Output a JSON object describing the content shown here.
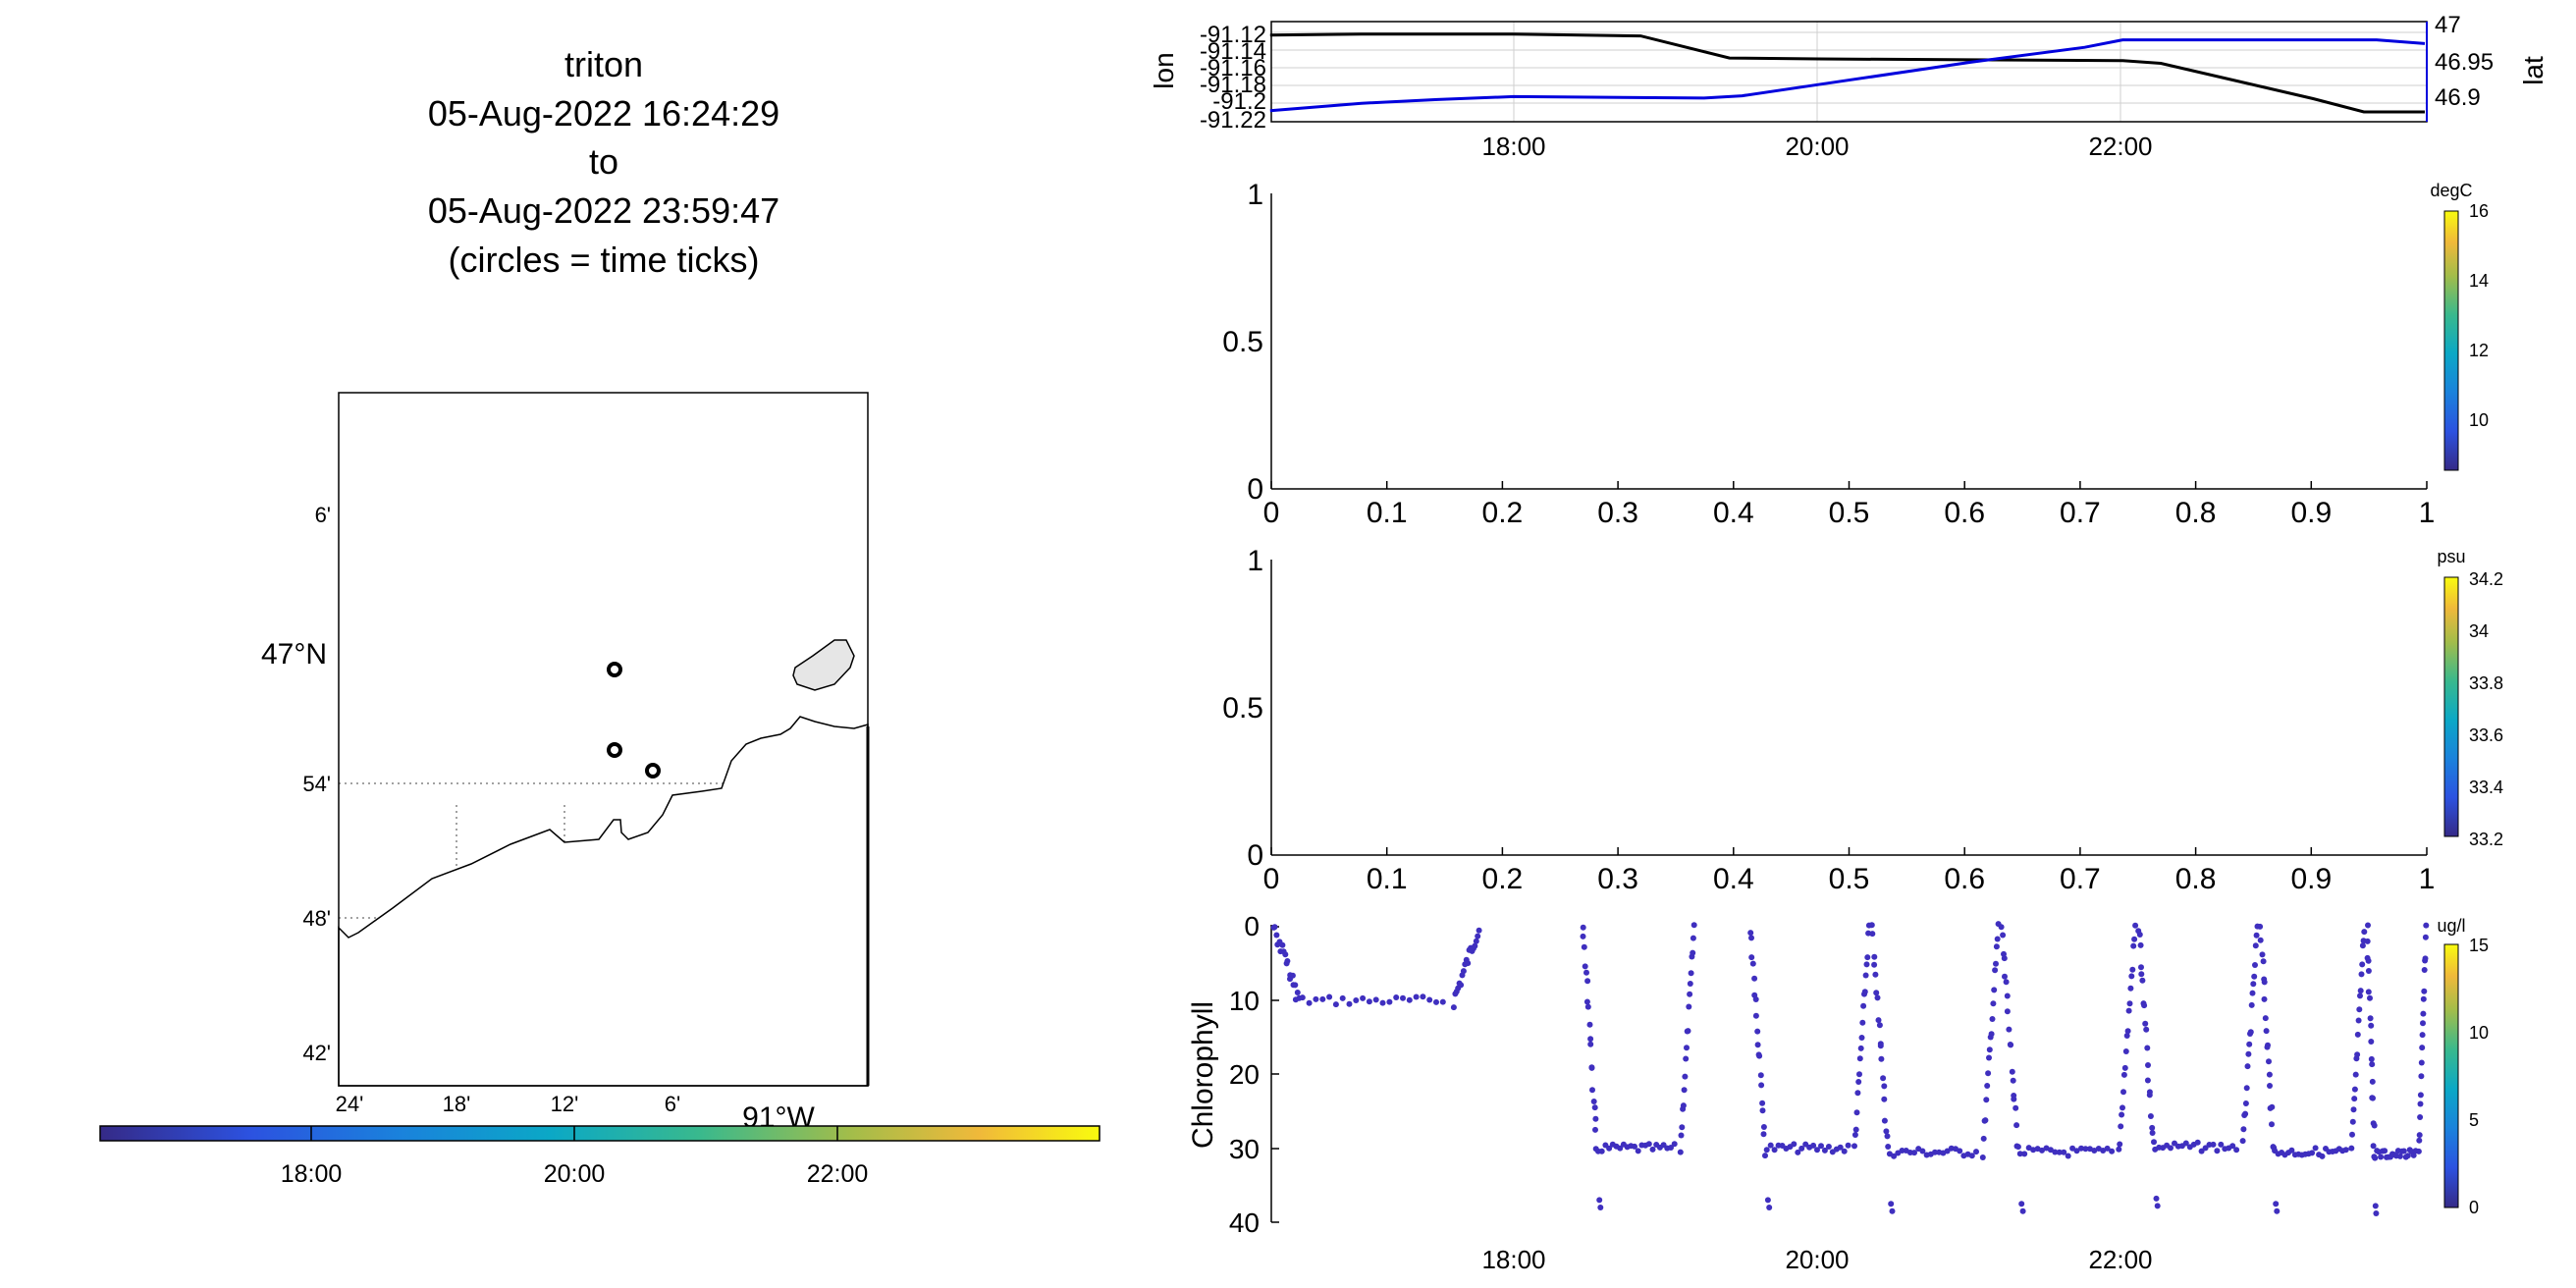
{
  "title_lines": [
    "triton",
    "05-Aug-2022 16:24:29",
    "to",
    "05-Aug-2022 23:59:47",
    "(circles = time ticks)"
  ],
  "colors": {
    "lon_line": "#000000",
    "lat_line": "#0000dd",
    "scatter": "#3f2fbf",
    "land": "#e6e6e6",
    "axis": "#000000"
  },
  "map": {
    "lat_tick_labels": [
      "6'",
      "47°N",
      "54'",
      "48'",
      "42'"
    ],
    "lon_tick_labels": [
      "24'",
      "18'",
      "12'",
      "6'",
      "91°W"
    ],
    "grid": "dotted"
  },
  "time_colorbar": {
    "tick_labels": [
      "18:00",
      "20:00",
      "22:00"
    ],
    "colormap": "parula"
  },
  "chart_data": [
    {
      "type": "line",
      "name": "track-lon-lat",
      "ylabel": "lon",
      "ylabel_right": "lat",
      "left_tick_labels": [
        "-91.12",
        "-91.14",
        "-91.16",
        "-91.18",
        "-91.2",
        "-91.22"
      ],
      "right_tick_labels": [
        "47",
        "46.95",
        "46.9"
      ],
      "x_tick_labels": [
        "18:00",
        "20:00",
        "22:00"
      ],
      "grid": true,
      "series": [
        {
          "axis": "left",
          "x": [
            "16:24",
            "17:00",
            "18:00",
            "18:50",
            "19:25",
            "20:00",
            "21:00",
            "22:00",
            "22:15",
            "22:45",
            "23:15",
            "23:35",
            "23:59"
          ],
          "y": [
            -91.123,
            -91.122,
            -91.122,
            -91.124,
            -91.149,
            -91.15,
            -91.151,
            -91.152,
            -91.155,
            -91.175,
            -91.195,
            -91.21,
            -91.21
          ]
        },
        {
          "axis": "right",
          "x": [
            "16:24",
            "17:00",
            "17:30",
            "18:00",
            "19:15",
            "19:30",
            "20:00",
            "21:00",
            "21:45",
            "22:00",
            "23:00",
            "23:40",
            "23:59"
          ],
          "y": [
            46.895,
            46.905,
            46.91,
            46.914,
            46.912,
            46.915,
            46.93,
            46.96,
            46.98,
            46.99,
            46.99,
            46.99,
            46.985
          ]
        }
      ]
    },
    {
      "type": "scatter",
      "name": "temperature",
      "x_tick_labels": [
        "0",
        "0.1",
        "0.2",
        "0.3",
        "0.4",
        "0.5",
        "0.6",
        "0.7",
        "0.8",
        "0.9",
        "1"
      ],
      "y_tick_labels": [
        "1",
        "0.5",
        "0"
      ],
      "xlim": [
        0,
        1
      ],
      "ylim": [
        0,
        1
      ],
      "colorbar": {
        "label": "degC",
        "tick_labels": [
          "16",
          "14",
          "12",
          "10"
        ]
      }
    },
    {
      "type": "scatter",
      "name": "salinity",
      "x_tick_labels": [
        "0",
        "0.1",
        "0.2",
        "0.3",
        "0.4",
        "0.5",
        "0.6",
        "0.7",
        "0.8",
        "0.9",
        "1"
      ],
      "y_tick_labels": [
        "1",
        "0.5",
        "0"
      ],
      "xlim": [
        0,
        1
      ],
      "ylim": [
        0,
        1
      ],
      "colorbar": {
        "label": "psu",
        "tick_labels": [
          "34.2",
          "34",
          "33.8",
          "33.6",
          "33.4",
          "33.2"
        ]
      }
    },
    {
      "type": "scatter",
      "name": "chlorophyll",
      "ylabel": "Chlorophyll",
      "y_tick_labels": [
        "0",
        "10",
        "20",
        "30",
        "40"
      ],
      "x_tick_labels": [
        "18:00",
        "20:00",
        "22:00"
      ],
      "ylim": [
        40,
        0
      ],
      "colorbar": {
        "label": "ug/l",
        "tick_labels": [
          "15",
          "10",
          "5",
          "0"
        ]
      },
      "casts": [
        {
          "t0": 16.42,
          "t1": 17.8,
          "shallow": 0,
          "floor": 10
        },
        {
          "t0": 18.45,
          "t1": 19.2,
          "shallow": 0,
          "floor": 30
        },
        {
          "t0": 19.55,
          "t1": 20.35,
          "shallow": 0,
          "floor": 30
        },
        {
          "t0": 20.35,
          "t1": 21.2,
          "shallow": 0,
          "floor": 30.5
        },
        {
          "t0": 21.2,
          "t1": 22.1,
          "shallow": 0,
          "floor": 30.5
        },
        {
          "t0": 22.1,
          "t1": 22.9,
          "shallow": 0,
          "floor": 29.8
        },
        {
          "t0": 22.9,
          "t1": 23.6,
          "shallow": 0,
          "floor": 30.5
        },
        {
          "t0": 23.6,
          "t1": 24.0,
          "shallow": 0,
          "floor": 30.8
        }
      ]
    }
  ]
}
